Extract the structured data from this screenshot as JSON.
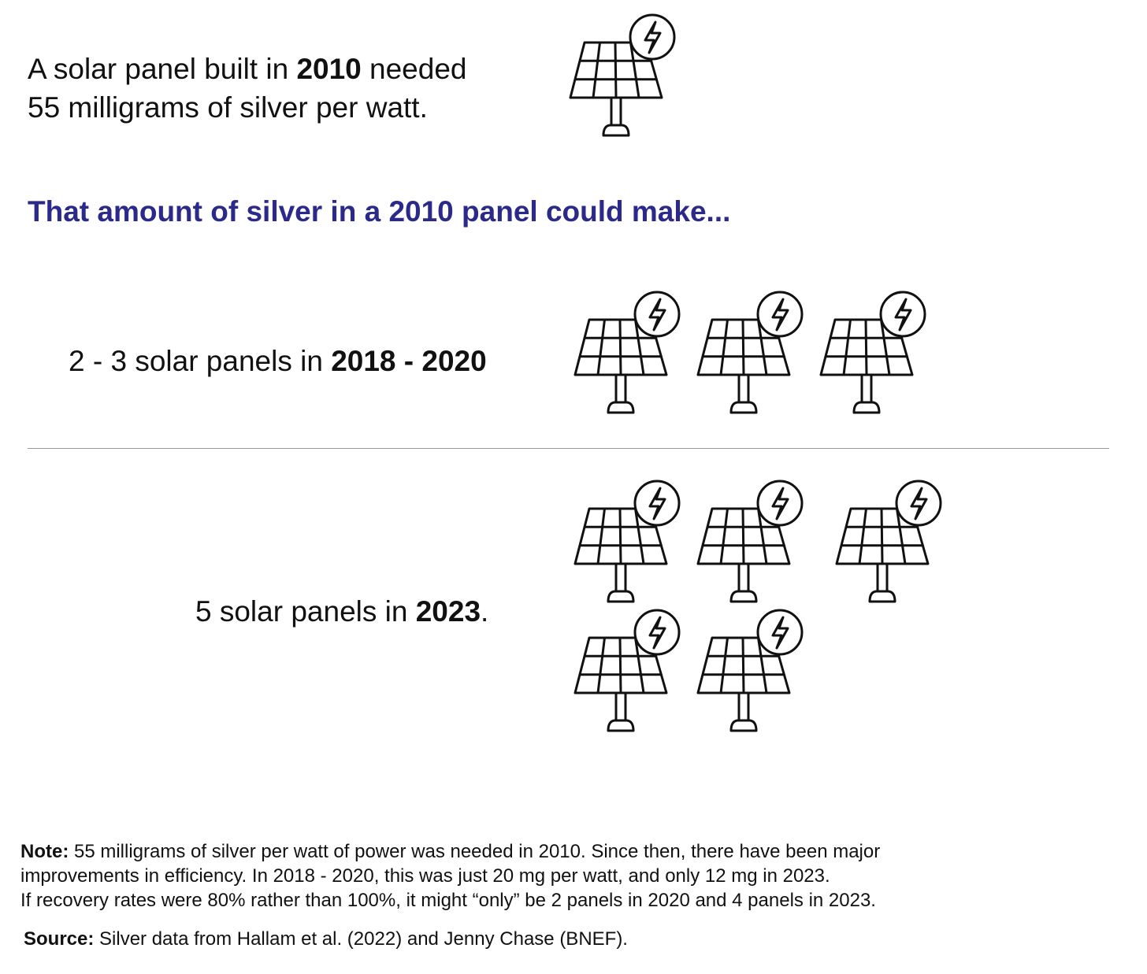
{
  "intro": {
    "line1_a": "A solar panel built in ",
    "line1_year": "2010",
    "line1_b": " needed",
    "line2": "55 milligrams of silver per watt."
  },
  "heading": "That amount of silver in a 2010 panel could make...",
  "row1": {
    "text_a": "2 - 3 solar panels in ",
    "text_bold": "2018 - 2020",
    "text_b": ""
  },
  "row2": {
    "text_a": "5 solar panels in ",
    "text_bold": "2023",
    "text_b": "."
  },
  "note": {
    "label": "Note:",
    "line1": " 55 milligrams of silver per watt of power was needed in 2010. Since then, there have been major",
    "line2": "improvements in efficiency. In 2018 - 2020, this was just 20 mg per watt, and only 12 mg in 2023.",
    "line3": "If recovery rates were 80% rather than 100%, it might “only” be 2 panels in 2020 and 4 panels in 2023."
  },
  "source": {
    "label": "Source:",
    "text": " Silver data from Hallam et al. (2022) and Jenny Chase (BNEF)."
  },
  "icons": {
    "name": "solar-panel-icon",
    "stroke_color": "#111111",
    "heading_color": "#2b2a8a"
  }
}
